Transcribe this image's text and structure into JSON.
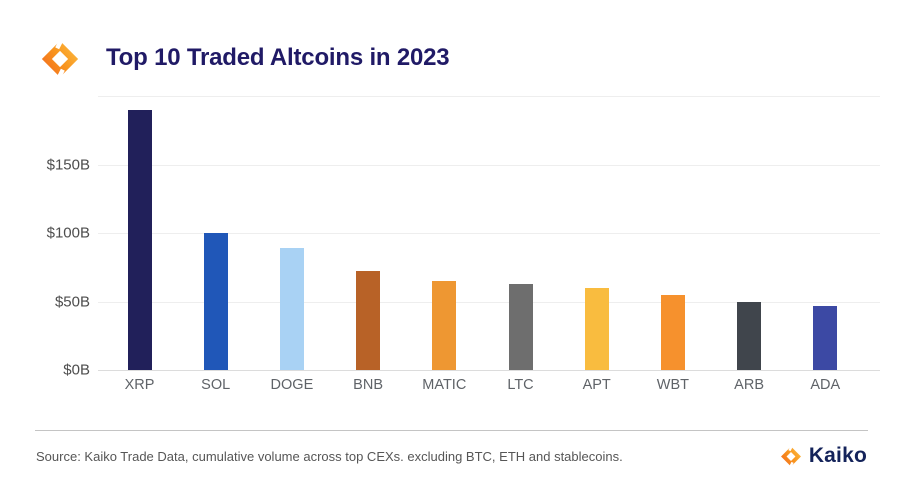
{
  "header": {
    "title": "Top 10 Traded Altcoins in 2023"
  },
  "chart_data": {
    "type": "bar",
    "title": "Top 10 Traded Altcoins in 2023",
    "categories": [
      "XRP",
      "SOL",
      "DOGE",
      "BNB",
      "MATIC",
      "LTC",
      "APT",
      "WBT",
      "ARB",
      "ADA"
    ],
    "values": [
      190,
      100,
      89,
      72,
      65,
      63,
      60,
      55,
      50,
      47
    ],
    "unit": "USD billions (cumulative 2023 trade volume)",
    "bar_colors": [
      "#21205a",
      "#2057b8",
      "#a9d2f4",
      "#b86227",
      "#ee9732",
      "#6e6e6e",
      "#f9bc3f",
      "#f6912d",
      "#40454c",
      "#3c49a4"
    ],
    "xlabel": "",
    "ylabel": "",
    "ylim": [
      0,
      200
    ],
    "yticks": [
      {
        "value": 0,
        "label": "$0B"
      },
      {
        "value": 50,
        "label": "$50B"
      },
      {
        "value": 100,
        "label": "$100B"
      },
      {
        "value": 150,
        "label": "$150B"
      }
    ],
    "gridlines": [
      50,
      100,
      150,
      200
    ],
    "grid": "horizontal",
    "legend_position": "none"
  },
  "footer": {
    "source": "Source: Kaiko Trade Data, cumulative volume across top CEXs. excluding BTC, ETH and stablecoins.",
    "brand": "Kaiko"
  },
  "colors": {
    "background": "#ffffff",
    "title_navy": "#201a66",
    "wordmark_navy": "#14235a",
    "logo_orange_start": "#f26a1e",
    "logo_orange_mid": "#f8941e",
    "logo_orange_end": "#fcbc42",
    "axis_text": "#4d4d4d",
    "category_text": "#5f6368",
    "source_text": "#565656",
    "gridline": "#eeeeee",
    "axis_line": "#dcdcdc",
    "divider": "#c4c4c4"
  }
}
